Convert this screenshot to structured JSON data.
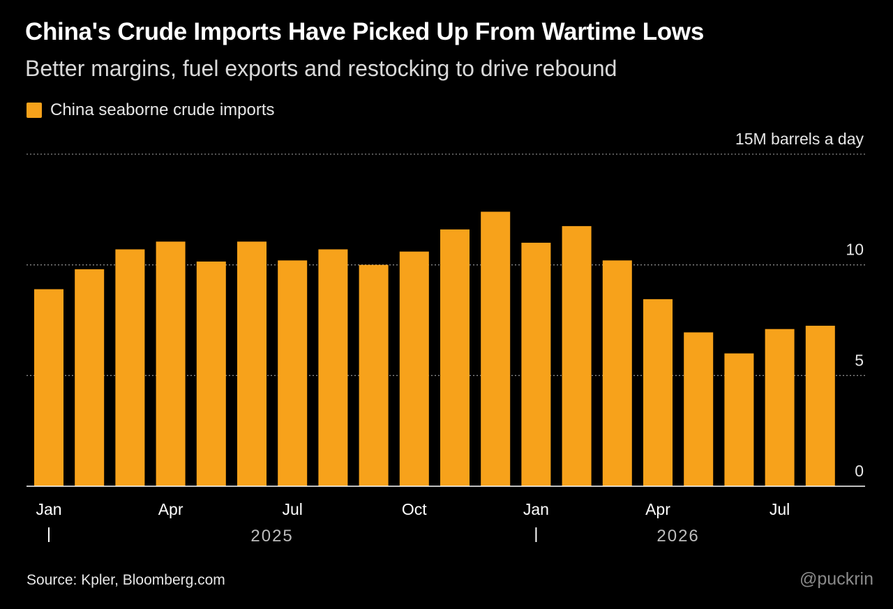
{
  "title": "China's Crude Imports Have Picked Up From Wartime Lows",
  "subtitle": "Better margins, fuel exports and restocking to drive rebound",
  "legend_label": "China seaborne crude imports",
  "source": "Source: Kpler, Bloomberg.com",
  "watermark": "@puckrin",
  "colors": {
    "background": "#000000",
    "bar": "#f7a21b",
    "grid": "#888888",
    "axis_text": "#ffffff",
    "year_text": "#bdbdbd"
  },
  "chart_data": {
    "type": "bar",
    "unit_label": "15M barrels a day",
    "ylim": [
      0,
      15
    ],
    "yticks": [
      {
        "value": 15,
        "label": "15M barrels a day"
      },
      {
        "value": 10,
        "label": "10"
      },
      {
        "value": 5,
        "label": "5"
      },
      {
        "value": 0,
        "label": "0"
      }
    ],
    "grid": true,
    "legend_position": "top-left",
    "series": [
      {
        "name": "China seaborne crude imports",
        "values": [
          8.9,
          9.8,
          10.7,
          11.05,
          10.15,
          11.05,
          10.2,
          10.7,
          10.0,
          10.6,
          11.6,
          12.4,
          11.0,
          11.75,
          10.2,
          8.45,
          6.95,
          6.0,
          7.1,
          7.25
        ]
      }
    ],
    "categories": [
      "2025-01",
      "2025-02",
      "2025-03",
      "2025-04",
      "2025-05",
      "2025-06",
      "2025-07",
      "2025-08",
      "2025-09",
      "2025-10",
      "2025-11",
      "2025-12",
      "2026-01",
      "2026-02",
      "2026-03",
      "2026-04",
      "2026-05",
      "2026-06",
      "2026-07",
      "2026-08"
    ],
    "xtick_labels": [
      {
        "index": 0,
        "label": "Jan"
      },
      {
        "index": 3,
        "label": "Apr"
      },
      {
        "index": 6,
        "label": "Jul"
      },
      {
        "index": 9,
        "label": "Oct"
      },
      {
        "index": 12,
        "label": "Jan"
      },
      {
        "index": 15,
        "label": "Apr"
      },
      {
        "index": 18,
        "label": "Jul"
      }
    ],
    "year_labels": [
      {
        "label": "2025",
        "start_index": 0
      },
      {
        "label": "2026",
        "start_index": 12
      }
    ]
  }
}
